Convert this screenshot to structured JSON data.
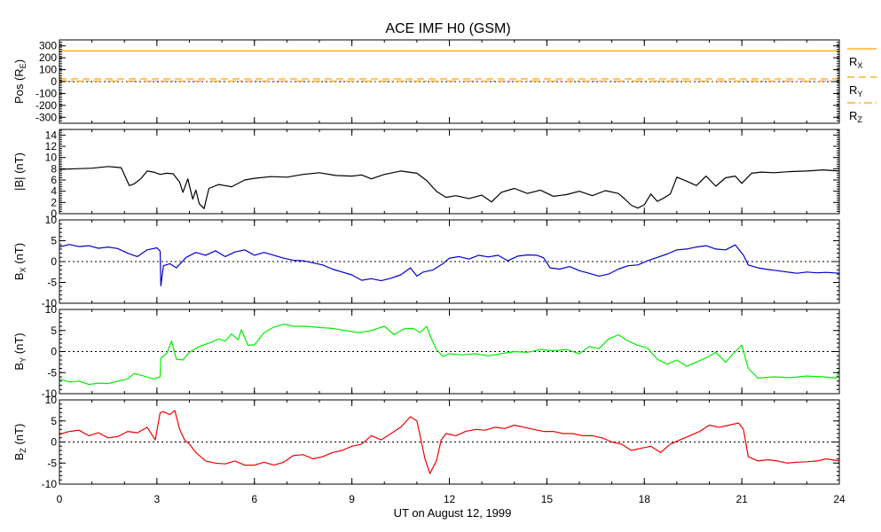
{
  "title": "ACE IMF H0 (GSM)",
  "xlabel": "UT on August 12, 1999",
  "x_ticks": [
    0,
    3,
    6,
    9,
    12,
    15,
    18,
    21,
    24
  ],
  "x_tick_labels": [
    "0",
    "3",
    "6",
    "9",
    "12",
    "15",
    "18",
    "21",
    "24"
  ],
  "x_range": [
    0,
    24
  ],
  "chart_data": [
    {
      "type": "line",
      "id": "pos",
      "ylabel": "Pos (R",
      "ylabel_sub": "E",
      "ylabel_tail": ")",
      "ylim": [
        -350,
        350
      ],
      "y_ticks": [
        -300,
        -200,
        -100,
        0,
        100,
        200,
        300
      ],
      "y_tick_labels": [
        "-300",
        "-200",
        "-100",
        "0",
        "100",
        "200",
        "300"
      ],
      "series": [
        {
          "name": "R",
          "sub": "X",
          "color": "#ffa500",
          "dash": "solid",
          "x": [
            0,
            24
          ],
          "y": [
            258,
            258
          ]
        },
        {
          "name": "R",
          "sub": "Y",
          "color": "#ffa500",
          "dash": "dashed",
          "x": [
            0,
            24
          ],
          "y": [
            22,
            22
          ]
        },
        {
          "name": "R",
          "sub": "Z",
          "color": "#ffa500",
          "dash": "dashdot",
          "x": [
            0,
            24
          ],
          "y": [
            4,
            4
          ]
        }
      ]
    },
    {
      "type": "line",
      "id": "bmag",
      "ylabel": "|B| (nT)",
      "ylim": [
        0,
        15
      ],
      "y_ticks": [
        0,
        2,
        4,
        6,
        8,
        10,
        12,
        14
      ],
      "y_tick_labels": [
        "0",
        "2",
        "4",
        "6",
        "8",
        "10",
        "12",
        "14"
      ],
      "series": [
        {
          "color": "#000000",
          "x": [
            0,
            0.5,
            1,
            1.5,
            1.9,
            2.15,
            2.3,
            2.5,
            2.7,
            2.9,
            3.1,
            3.3,
            3.5,
            3.7,
            3.8,
            3.95,
            4.1,
            4.2,
            4.3,
            4.45,
            4.6,
            4.9,
            5.3,
            5.7,
            6,
            6.5,
            7,
            7.5,
            8,
            8.5,
            9,
            9.3,
            9.6,
            10,
            10.5,
            11,
            11.3,
            11.6,
            11.9,
            12.2,
            12.6,
            13,
            13.3,
            13.6,
            14,
            14.4,
            14.8,
            15.2,
            15.6,
            16,
            16.4,
            16.8,
            17.2,
            17.4,
            17.6,
            17.8,
            18,
            18.2,
            18.4,
            18.6,
            18.8,
            19,
            19.3,
            19.6,
            19.9,
            20.2,
            20.5,
            20.8,
            21,
            21.3,
            21.6,
            22,
            22.5,
            23,
            23.5,
            24
          ],
          "y": [
            7.9,
            8,
            8.1,
            8.4,
            8.2,
            5,
            5.3,
            6.2,
            7.6,
            7.4,
            7,
            7.2,
            7.1,
            5.6,
            3.8,
            6.2,
            2.6,
            4.2,
            1.8,
            0.9,
            4.5,
            5.2,
            4.8,
            6,
            6.3,
            6.6,
            6.5,
            7,
            7.3,
            6.8,
            6.7,
            6.9,
            6.2,
            7,
            7.6,
            7.2,
            5.9,
            4,
            2.9,
            3.2,
            2.7,
            3.3,
            2.1,
            3.8,
            4.5,
            3.6,
            4.2,
            3.1,
            3.4,
            4,
            3.2,
            4.1,
            3.6,
            2.6,
            1.5,
            1,
            1.6,
            3.5,
            2.2,
            2.8,
            3.5,
            6.5,
            5.8,
            5,
            6.7,
            4.9,
            6.4,
            6.7,
            5.4,
            7.2,
            7.4,
            7.3,
            7.5,
            7.6,
            7.8,
            7.6
          ]
        }
      ]
    },
    {
      "type": "line",
      "id": "bx",
      "ylabel": "B",
      "ylabel_sub": "X",
      "ylabel_tail": " (nT)",
      "ylim": [
        -10,
        10
      ],
      "y_ticks": [
        -10,
        -5,
        0,
        5,
        10
      ],
      "y_tick_labels": [
        "-10",
        "-5",
        "0",
        "5",
        "10"
      ],
      "series": [
        {
          "color": "#0000cd",
          "x": [
            0,
            0.3,
            0.6,
            0.9,
            1.2,
            1.5,
            1.8,
            2.1,
            2.4,
            2.7,
            3,
            3.1,
            3.12,
            3.2,
            3.4,
            3.6,
            3.9,
            4.2,
            4.5,
            4.8,
            5.1,
            5.4,
            5.7,
            6,
            6.3,
            6.6,
            6.9,
            7.2,
            7.5,
            7.8,
            8.1,
            8.4,
            8.7,
            9,
            9.3,
            9.6,
            9.9,
            10.2,
            10.5,
            10.8,
            11,
            11.2,
            11.5,
            11.8,
            12,
            12.3,
            12.6,
            12.9,
            13.2,
            13.5,
            13.8,
            14.1,
            14.4,
            14.7,
            14.9,
            15.1,
            15.4,
            15.7,
            16,
            16.3,
            16.6,
            16.9,
            17.2,
            17.5,
            17.8,
            18.1,
            18.4,
            18.7,
            19,
            19.3,
            19.6,
            19.9,
            20.2,
            20.5,
            20.8,
            21.05,
            21.2,
            21.5,
            21.8,
            22.1,
            22.4,
            22.7,
            23,
            23.3,
            23.6,
            24
          ],
          "y": [
            3.5,
            4.1,
            3.6,
            3.8,
            3.2,
            3.5,
            3.1,
            2,
            1.2,
            2.8,
            3.3,
            2.5,
            -5.8,
            -1,
            -0.5,
            -1.5,
            1,
            2.2,
            1.5,
            2.6,
            1.2,
            2.3,
            2.8,
            1.5,
            2.2,
            1.5,
            0.8,
            0.3,
            0.2,
            -0.3,
            -0.8,
            -1.8,
            -2.5,
            -3.2,
            -4.5,
            -4.1,
            -4.6,
            -4,
            -3.2,
            -1.5,
            -3.5,
            -2.5,
            -2,
            -0.5,
            0.8,
            1.2,
            0.6,
            1.5,
            1.1,
            1.5,
            0.2,
            1.3,
            1.6,
            1.5,
            0.9,
            -1.5,
            -1.8,
            -1.2,
            -2.2,
            -2.8,
            -3.5,
            -3,
            -1.8,
            -1,
            -0.8,
            0.2,
            1,
            1.8,
            2.8,
            3,
            3.5,
            3.8,
            3,
            2.8,
            4,
            1.5,
            -0.8,
            -1.5,
            -1.9,
            -2.2,
            -2.5,
            -2.8,
            -2.5,
            -2.7,
            -2.6,
            -2.8
          ]
        }
      ]
    },
    {
      "type": "line",
      "id": "by",
      "ylabel": "B",
      "ylabel_sub": "Y",
      "ylabel_tail": " (nT)",
      "ylim": [
        -10,
        10
      ],
      "y_ticks": [
        -10,
        -5,
        0,
        5,
        10
      ],
      "y_tick_labels": [
        "-10",
        "-5",
        "0",
        "5",
        "10"
      ],
      "series": [
        {
          "color": "#00ee00",
          "x": [
            0,
            0.3,
            0.6,
            0.9,
            1.2,
            1.5,
            1.8,
            2.1,
            2.3,
            2.6,
            2.9,
            3.1,
            3.12,
            3.3,
            3.45,
            3.6,
            3.8,
            4,
            4.3,
            4.6,
            4.9,
            5.1,
            5.3,
            5.5,
            5.6,
            5.8,
            6,
            6.3,
            6.6,
            6.9,
            7.2,
            7.6,
            8,
            8.4,
            8.8,
            9.2,
            9.6,
            10,
            10.3,
            10.6,
            10.9,
            11.1,
            11.3,
            11.45,
            11.6,
            11.8,
            12,
            12.4,
            12.8,
            13.2,
            13.6,
            14,
            14.4,
            14.8,
            15.2,
            15.6,
            16,
            16.3,
            16.6,
            16.9,
            17.2,
            17.5,
            17.8,
            18.1,
            18.4,
            18.7,
            19,
            19.3,
            19.6,
            19.9,
            20.2,
            20.5,
            20.8,
            21,
            21.2,
            21.5,
            22,
            22.5,
            23,
            23.5,
            23.9,
            24
          ],
          "y": [
            -6.5,
            -7.2,
            -7,
            -7.8,
            -7.5,
            -7.6,
            -7,
            -6.5,
            -5.2,
            -5.8,
            -6.5,
            -6,
            -1.5,
            -0.5,
            2.5,
            -1.8,
            -2,
            -0.2,
            1.2,
            2,
            3,
            2.5,
            4.2,
            2.8,
            5.2,
            1.5,
            1.6,
            4.5,
            5.8,
            6.5,
            6,
            6,
            5.7,
            5.5,
            5,
            4.5,
            5,
            6,
            4,
            5.4,
            5.5,
            4.5,
            6,
            3,
            0.5,
            -1.2,
            -0.5,
            -0.8,
            -0.5,
            -1,
            -0.5,
            0,
            -0.2,
            0.5,
            0.2,
            0.5,
            -0.5,
            1.2,
            0.7,
            3,
            4,
            2.5,
            1.5,
            0.8,
            -1.8,
            -3,
            -2,
            -3.5,
            -2.5,
            -1.5,
            -0.2,
            -2.5,
            0,
            1.5,
            -4,
            -6.3,
            -6,
            -6.2,
            -5.8,
            -6,
            -6.3,
            -4.5
          ]
        }
      ]
    },
    {
      "type": "line",
      "id": "bz",
      "ylabel": "B",
      "ylabel_sub": "Z",
      "ylabel_tail": " (nT)",
      "ylim": [
        -10,
        10
      ],
      "y_ticks": [
        -10,
        -5,
        0,
        5,
        10
      ],
      "y_tick_labels": [
        "-10",
        "-5",
        "0",
        "5",
        "10"
      ],
      "series": [
        {
          "color": "#ee0000",
          "x": [
            0,
            0.3,
            0.6,
            0.9,
            1.2,
            1.5,
            1.8,
            2.1,
            2.4,
            2.7,
            2.95,
            3.1,
            3.2,
            3.4,
            3.55,
            3.7,
            3.85,
            4,
            4.2,
            4.5,
            4.8,
            5.1,
            5.4,
            5.7,
            6,
            6.3,
            6.6,
            6.9,
            7.2,
            7.5,
            7.8,
            8.1,
            8.4,
            8.7,
            9,
            9.3,
            9.6,
            9.9,
            10.2,
            10.5,
            10.8,
            11,
            11.1,
            11.25,
            11.4,
            11.6,
            11.75,
            11.9,
            12.2,
            12.5,
            12.8,
            13.1,
            13.4,
            13.7,
            14,
            14.3,
            14.6,
            14.9,
            15.2,
            15.5,
            15.8,
            16.1,
            16.4,
            16.7,
            17,
            17.3,
            17.6,
            17.9,
            18.2,
            18.5,
            18.8,
            19.1,
            19.4,
            19.7,
            20,
            20.3,
            20.6,
            20.9,
            21.05,
            21.2,
            21.5,
            21.8,
            22.1,
            22.4,
            22.7,
            23,
            23.3,
            23.6,
            24
          ],
          "y": [
            1.8,
            2.5,
            2.8,
            1.5,
            2.2,
            1,
            1.3,
            2.5,
            2.2,
            3.5,
            0.5,
            7,
            7.2,
            6.5,
            7.5,
            3,
            0.5,
            -0.5,
            -2.5,
            -4.5,
            -5,
            -5.2,
            -4.5,
            -5.5,
            -5.5,
            -4.8,
            -5.5,
            -4.8,
            -3.2,
            -3,
            -4,
            -3.5,
            -2.5,
            -2,
            -1,
            -0.5,
            1.5,
            0.5,
            2,
            3.5,
            6,
            5,
            1.5,
            -4,
            -7.5,
            -4.5,
            0.5,
            2,
            1.5,
            2.5,
            3,
            2.8,
            3.5,
            3.2,
            4,
            3.5,
            3,
            2.5,
            2.5,
            2,
            2,
            1.5,
            1.5,
            1,
            0,
            -0.5,
            -2,
            -1.5,
            -1,
            -2.5,
            -0.5,
            0.5,
            1.5,
            2.5,
            4,
            3.5,
            4,
            4.5,
            3,
            -3.5,
            -4.5,
            -4.2,
            -4.5,
            -5,
            -4.8,
            -4.7,
            -4.5,
            -4,
            -4.5
          ]
        }
      ]
    }
  ]
}
